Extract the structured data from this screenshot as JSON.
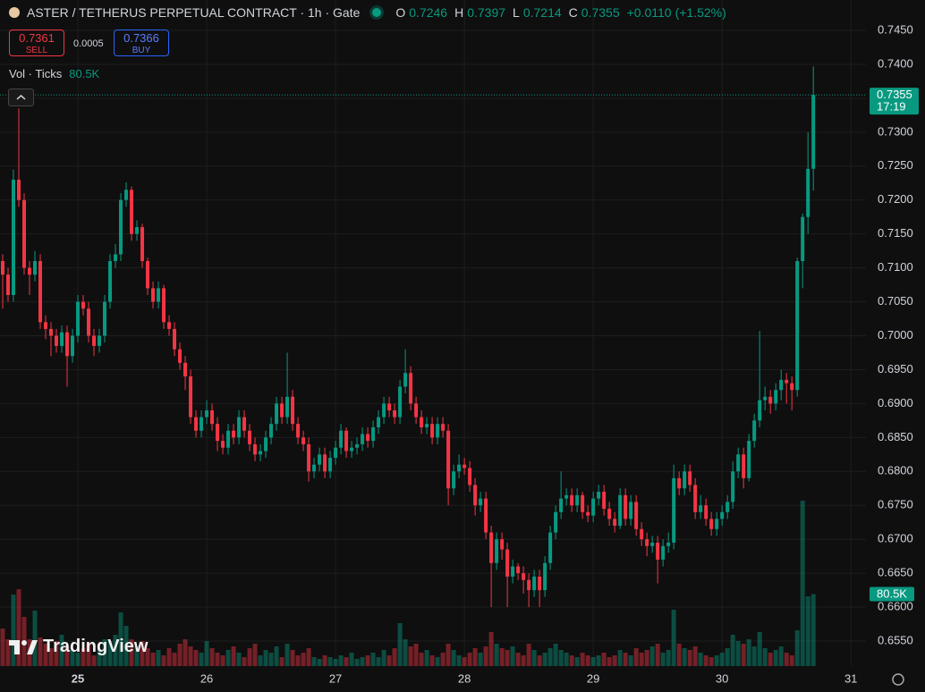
{
  "toolbar": {
    "sell_price": "0.7361",
    "sell_label": "SELL",
    "spread": "0.0005",
    "buy_price": "0.7366",
    "buy_label": "BUY",
    "branding": "TradingView"
  },
  "chart_data": {
    "type": "candlestick",
    "title": "ASTER / TETHERUS PERPETUAL CONTRACT · 1h · Gate",
    "ohlc_legend": {
      "open_label": "O",
      "high_label": "H",
      "low_label": "L",
      "close_label": "C",
      "change": "+0.0110",
      "change_percent": "(+1.52%)"
    },
    "up_color": "#089981",
    "down_color": "#f23645",
    "grid": true,
    "countdown": "17:19",
    "xlim": [
      -0.5,
      160.8
    ],
    "xticks": [
      {
        "value": 14,
        "label": "25"
      },
      {
        "value": 38,
        "label": "26"
      },
      {
        "value": 62,
        "label": "27"
      },
      {
        "value": 86,
        "label": "28"
      },
      {
        "value": 110,
        "label": "29"
      },
      {
        "value": 134,
        "label": "30"
      },
      {
        "value": 158,
        "label": "31"
      }
    ],
    "ylim": [
      0.655,
      0.745
    ],
    "yticks": [
      {
        "value": 0.655,
        "label": "0.6550"
      },
      {
        "value": 0.66,
        "label": "0.6600"
      },
      {
        "value": 0.665,
        "label": "0.6650"
      },
      {
        "value": 0.67,
        "label": "0.6700"
      },
      {
        "value": 0.675,
        "label": "0.6750"
      },
      {
        "value": 0.68,
        "label": "0.6800"
      },
      {
        "value": 0.685,
        "label": "0.6850"
      },
      {
        "value": 0.69,
        "label": "0.6900"
      },
      {
        "value": 0.695,
        "label": "0.6950"
      },
      {
        "value": 0.7,
        "label": "0.7000"
      },
      {
        "value": 0.705,
        "label": "0.7050"
      },
      {
        "value": 0.71,
        "label": "0.7100"
      },
      {
        "value": 0.715,
        "label": "0.7150"
      },
      {
        "value": 0.72,
        "label": "0.7200"
      },
      {
        "value": 0.725,
        "label": "0.7250"
      },
      {
        "value": 0.73,
        "label": "0.7300"
      },
      {
        "value": 0.735,
        "label": "0.7350"
      },
      {
        "value": 0.74,
        "label": "0.7400"
      },
      {
        "value": 0.745,
        "label": "0.7450"
      }
    ],
    "open": [
      0.711,
      0.709,
      0.706,
      0.723,
      0.72,
      0.71,
      0.709,
      0.711,
      0.702,
      0.701,
      0.7,
      0.6985,
      0.7005,
      0.697,
      0.7,
      0.705,
      0.704,
      0.7,
      0.6985,
      0.7,
      0.705,
      0.711,
      0.712,
      0.72,
      0.7215,
      0.715,
      0.716,
      0.711,
      0.707,
      0.705,
      0.707,
      0.702,
      0.701,
      0.698,
      0.696,
      0.694,
      0.688,
      0.686,
      0.688,
      0.689,
      0.687,
      0.6845,
      0.6835,
      0.686,
      0.685,
      0.688,
      0.686,
      0.684,
      0.6825,
      0.683,
      0.685,
      0.687,
      0.69,
      0.688,
      0.691,
      0.687,
      0.685,
      0.684,
      0.68,
      0.681,
      0.6825,
      0.68,
      0.682,
      0.6835,
      0.686,
      0.683,
      0.6835,
      0.684,
      0.6855,
      0.6845,
      0.6865,
      0.688,
      0.69,
      0.689,
      0.688,
      0.6925,
      0.6945,
      0.69,
      0.688,
      0.6865,
      0.687,
      0.685,
      0.687,
      0.686,
      0.6775,
      0.68,
      0.681,
      0.6805,
      0.678,
      0.675,
      0.676,
      0.671,
      0.6665,
      0.67,
      0.6685,
      0.6645,
      0.666,
      0.665,
      0.664,
      0.6625,
      0.6645,
      0.6625,
      0.6665,
      0.671,
      0.674,
      0.676,
      0.6765,
      0.675,
      0.6765,
      0.674,
      0.6735,
      0.676,
      0.677,
      0.6745,
      0.673,
      0.672,
      0.6765,
      0.673,
      0.6755,
      0.6715,
      0.67,
      0.669,
      0.6695,
      0.667,
      0.669,
      0.6695,
      0.679,
      0.6775,
      0.68,
      0.678,
      0.674,
      0.675,
      0.673,
      0.6715,
      0.673,
      0.674,
      0.6755,
      0.68,
      0.6825,
      0.679,
      0.6845,
      0.6875,
      0.6905,
      0.691,
      0.69,
      0.692,
      0.6935,
      0.693,
      0.692,
      0.711,
      0.7175,
      0.7246
    ],
    "high": [
      0.712,
      0.71,
      0.7245,
      0.7335,
      0.721,
      0.711,
      0.7125,
      0.712,
      0.703,
      0.702,
      0.701,
      0.7015,
      0.7015,
      0.701,
      0.706,
      0.706,
      0.705,
      0.701,
      0.701,
      0.706,
      0.712,
      0.7135,
      0.721,
      0.7226,
      0.722,
      0.717,
      0.7165,
      0.7115,
      0.708,
      0.708,
      0.7075,
      0.703,
      0.702,
      0.699,
      0.697,
      0.695,
      0.689,
      0.689,
      0.6905,
      0.69,
      0.688,
      0.6855,
      0.687,
      0.687,
      0.689,
      0.689,
      0.687,
      0.685,
      0.684,
      0.686,
      0.688,
      0.691,
      0.691,
      0.6975,
      0.692,
      0.688,
      0.686,
      0.685,
      0.682,
      0.6835,
      0.6835,
      0.683,
      0.6845,
      0.687,
      0.6865,
      0.6845,
      0.685,
      0.6865,
      0.6865,
      0.6875,
      0.689,
      0.691,
      0.691,
      0.69,
      0.6935,
      0.698,
      0.6955,
      0.691,
      0.689,
      0.688,
      0.688,
      0.688,
      0.688,
      0.687,
      0.681,
      0.6825,
      0.682,
      0.6815,
      0.679,
      0.677,
      0.677,
      0.672,
      0.671,
      0.671,
      0.6695,
      0.667,
      0.6665,
      0.666,
      0.665,
      0.6655,
      0.6655,
      0.6675,
      0.672,
      0.675,
      0.68,
      0.6775,
      0.6775,
      0.6775,
      0.677,
      0.675,
      0.677,
      0.678,
      0.678,
      0.6755,
      0.674,
      0.6775,
      0.6775,
      0.6765,
      0.6765,
      0.6725,
      0.671,
      0.6705,
      0.6705,
      0.67,
      0.671,
      0.681,
      0.68,
      0.681,
      0.681,
      0.679,
      0.6765,
      0.676,
      0.674,
      0.674,
      0.675,
      0.6765,
      0.6815,
      0.6835,
      0.6835,
      0.6855,
      0.6885,
      0.7007,
      0.6925,
      0.692,
      0.693,
      0.695,
      0.6945,
      0.694,
      0.7115,
      0.718,
      0.73,
      0.7397
    ],
    "low": [
      0.704,
      0.705,
      0.705,
      0.719,
      0.709,
      0.706,
      0.708,
      0.701,
      0.6995,
      0.697,
      0.6975,
      0.6975,
      0.6925,
      0.696,
      0.699,
      0.703,
      0.699,
      0.697,
      0.6975,
      0.699,
      0.704,
      0.71,
      0.711,
      0.719,
      0.714,
      0.714,
      0.71,
      0.706,
      0.704,
      0.704,
      0.701,
      0.7,
      0.697,
      0.695,
      0.692,
      0.687,
      0.685,
      0.685,
      0.687,
      0.686,
      0.683,
      0.6825,
      0.6825,
      0.684,
      0.684,
      0.685,
      0.683,
      0.6815,
      0.6815,
      0.682,
      0.684,
      0.686,
      0.687,
      0.687,
      0.686,
      0.684,
      0.683,
      0.6785,
      0.679,
      0.68,
      0.679,
      0.679,
      0.681,
      0.6825,
      0.682,
      0.682,
      0.6825,
      0.683,
      0.6835,
      0.6835,
      0.6855,
      0.687,
      0.688,
      0.687,
      0.687,
      0.6915,
      0.689,
      0.687,
      0.6855,
      0.6855,
      0.684,
      0.684,
      0.685,
      0.675,
      0.6765,
      0.679,
      0.6795,
      0.677,
      0.6735,
      0.674,
      0.67,
      0.66,
      0.6655,
      0.667,
      0.66,
      0.6635,
      0.664,
      0.662,
      0.66,
      0.6615,
      0.66,
      0.6615,
      0.6655,
      0.67,
      0.673,
      0.675,
      0.674,
      0.674,
      0.673,
      0.6725,
      0.6725,
      0.675,
      0.6735,
      0.672,
      0.671,
      0.6715,
      0.672,
      0.672,
      0.6705,
      0.669,
      0.6675,
      0.668,
      0.6635,
      0.666,
      0.668,
      0.6685,
      0.6765,
      0.6765,
      0.677,
      0.673,
      0.673,
      0.672,
      0.6705,
      0.6705,
      0.672,
      0.673,
      0.6745,
      0.679,
      0.6775,
      0.6785,
      0.6835,
      0.6865,
      0.689,
      0.6885,
      0.689,
      0.6905,
      0.69,
      0.689,
      0.691,
      0.707,
      0.715,
      0.7214
    ],
    "close": [
      0.709,
      0.706,
      0.723,
      0.72,
      0.71,
      0.709,
      0.711,
      0.702,
      0.701,
      0.7,
      0.6985,
      0.7005,
      0.697,
      0.7,
      0.705,
      0.704,
      0.7,
      0.6985,
      0.7,
      0.705,
      0.711,
      0.712,
      0.72,
      0.7215,
      0.715,
      0.716,
      0.711,
      0.707,
      0.705,
      0.707,
      0.702,
      0.701,
      0.698,
      0.696,
      0.694,
      0.688,
      0.686,
      0.688,
      0.689,
      0.687,
      0.6845,
      0.6835,
      0.686,
      0.685,
      0.688,
      0.686,
      0.684,
      0.6825,
      0.683,
      0.685,
      0.687,
      0.69,
      0.688,
      0.691,
      0.687,
      0.685,
      0.684,
      0.68,
      0.681,
      0.6825,
      0.68,
      0.682,
      0.6835,
      0.686,
      0.683,
      0.6835,
      0.684,
      0.6855,
      0.6845,
      0.6865,
      0.688,
      0.69,
      0.689,
      0.688,
      0.6925,
      0.6945,
      0.69,
      0.688,
      0.6865,
      0.687,
      0.685,
      0.687,
      0.686,
      0.6775,
      0.68,
      0.681,
      0.6805,
      0.678,
      0.675,
      0.676,
      0.671,
      0.6665,
      0.67,
      0.6685,
      0.6645,
      0.666,
      0.665,
      0.664,
      0.6625,
      0.6645,
      0.6625,
      0.6665,
      0.671,
      0.674,
      0.676,
      0.6765,
      0.675,
      0.6765,
      0.674,
      0.6735,
      0.676,
      0.677,
      0.6745,
      0.673,
      0.672,
      0.6765,
      0.673,
      0.6755,
      0.6715,
      0.67,
      0.669,
      0.6695,
      0.667,
      0.669,
      0.6695,
      0.679,
      0.6775,
      0.68,
      0.678,
      0.674,
      0.675,
      0.673,
      0.6715,
      0.673,
      0.674,
      0.6755,
      0.68,
      0.6825,
      0.679,
      0.6845,
      0.6875,
      0.6905,
      0.691,
      0.69,
      0.692,
      0.6935,
      0.693,
      0.692,
      0.711,
      0.7175,
      0.7246,
      0.7355
    ],
    "volume": {
      "name": "Vol · Ticks",
      "last_value_label": "80.5K",
      "values": [
        42000,
        30000,
        80000,
        86000,
        55000,
        30000,
        62000,
        32000,
        25000,
        20000,
        28000,
        35000,
        22000,
        18000,
        15000,
        20000,
        25000,
        12000,
        18000,
        30000,
        28000,
        35000,
        60000,
        45000,
        30000,
        22000,
        28000,
        20000,
        15000,
        18000,
        12000,
        20000,
        15000,
        25000,
        30000,
        22000,
        18000,
        15000,
        28000,
        20000,
        15000,
        12000,
        18000,
        22000,
        15000,
        10000,
        20000,
        25000,
        12000,
        18000,
        15000,
        22000,
        10000,
        25000,
        18000,
        12000,
        15000,
        20000,
        10000,
        8000,
        12000,
        10000,
        8000,
        12000,
        10000,
        15000,
        8000,
        10000,
        12000,
        15000,
        10000,
        18000,
        12000,
        20000,
        48000,
        30000,
        22000,
        25000,
        15000,
        18000,
        12000,
        10000,
        15000,
        25000,
        18000,
        12000,
        10000,
        15000,
        20000,
        15000,
        22000,
        38000,
        25000,
        20000,
        18000,
        22000,
        15000,
        12000,
        25000,
        18000,
        12000,
        15000,
        20000,
        25000,
        18000,
        15000,
        12000,
        10000,
        15000,
        12000,
        10000,
        12000,
        15000,
        10000,
        12000,
        18000,
        15000,
        12000,
        20000,
        15000,
        18000,
        22000,
        25000,
        15000,
        18000,
        63000,
        25000,
        20000,
        18000,
        22000,
        15000,
        12000,
        10000,
        12000,
        15000,
        20000,
        35000,
        28000,
        25000,
        30000,
        22000,
        38000,
        20000,
        15000,
        18000,
        22000,
        15000,
        12000,
        40000,
        185000,
        78000,
        80500
      ]
    }
  }
}
